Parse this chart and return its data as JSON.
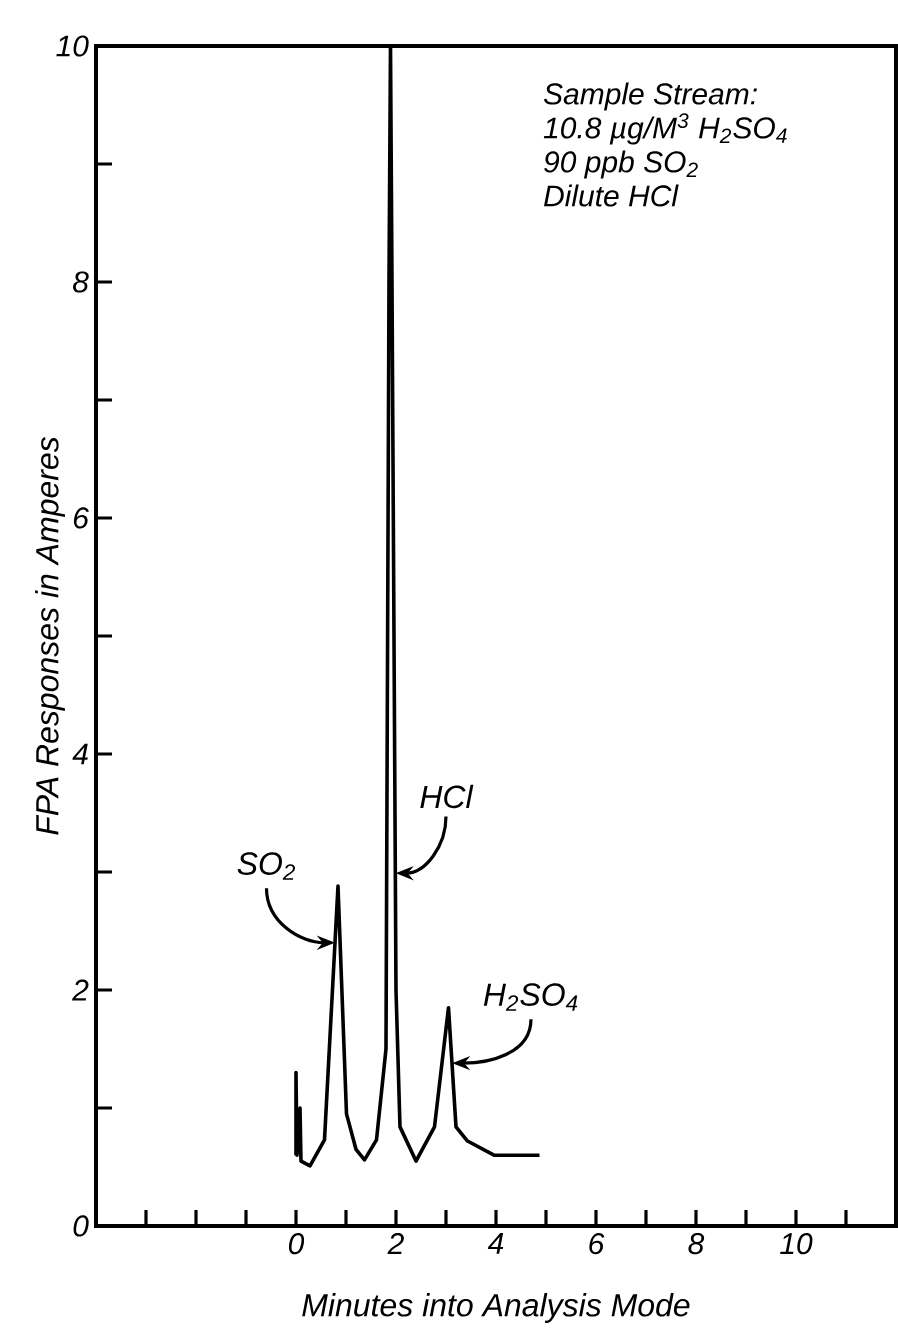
{
  "chart_data": {
    "type": "line",
    "xlabel": "Minutes into Analysis Mode",
    "ylabel": "FPA Responses in Amperes",
    "x": [
      0,
      0,
      0.02,
      0.08,
      0.1,
      0.28,
      0.57,
      0.84,
      1.01,
      1.2,
      1.37,
      1.61,
      1.8,
      1.86,
      1.89,
      1.92,
      2.0,
      2.08,
      2.4,
      2.77,
      3.05,
      3.2,
      3.43,
      3.96,
      4.87
    ],
    "series": [
      {
        "color": "#000000",
        "values": [
          0.6,
          1.3,
          0.6,
          1.0,
          0.55,
          0.51,
          0.73,
          2.88,
          0.95,
          0.65,
          0.56,
          0.73,
          1.5,
          8,
          10,
          8,
          2,
          0.84,
          0.55,
          0.84,
          1.85,
          0.84,
          0.72,
          0.6,
          0.6
        ]
      }
    ],
    "xlim": [
      -4,
      12
    ],
    "ylim": [
      0,
      10
    ],
    "xticks": [
      {
        "value": -3,
        "label": null
      },
      {
        "value": -2,
        "label": null
      },
      {
        "value": -1,
        "label": null
      },
      0,
      {
        "value": 1,
        "label": null
      },
      2,
      {
        "value": 3,
        "label": null
      },
      4,
      {
        "value": 5,
        "label": null
      },
      6,
      {
        "value": 7,
        "label": null
      },
      8,
      {
        "value": 9,
        "label": null
      },
      10,
      {
        "value": 11,
        "label": null
      }
    ],
    "yticks": [
      0,
      {
        "value": 1,
        "label": null
      },
      2,
      {
        "value": 3,
        "label": null
      },
      4,
      {
        "value": 5,
        "label": null
      },
      6,
      {
        "value": 7,
        "label": null
      },
      8,
      {
        "value": 9,
        "label": null
      },
      10
    ],
    "grid": false,
    "marker": "none",
    "line_style": "solid",
    "annotations": [
      "Sample Stream:",
      "10.8 µg/M$^{3}$ H$_{2}$SO$_{4}$",
      "90 ppb SO$_{2}$",
      "Dilute HCl",
      {
        "text": "SO$_{2}$",
        "x": 0.78,
        "y": 2.4
      },
      {
        "text": "HCl",
        "x": 1.99,
        "y": 2.99
      },
      {
        "text": "H$_{2}$SO$_{4}$",
        "x": 3.12,
        "y": 1.38
      }
    ]
  }
}
